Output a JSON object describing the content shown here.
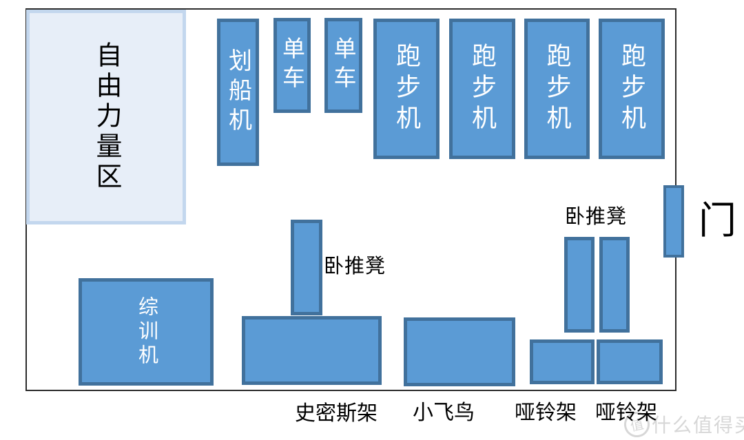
{
  "colors": {
    "machine_fill": "#5b9bd5",
    "machine_border": "#41719c",
    "zone_fill": "#e7eef8",
    "zone_border": "#c3d7ee",
    "wall": "#2b2b2b",
    "machine_text": "#ffffff",
    "label_text": "#000000",
    "watermark": "#d7d7d7"
  },
  "zone": {
    "label": "自由力量区"
  },
  "machines": {
    "rowing": {
      "label": "划船机"
    },
    "bike_1": {
      "label": "单车"
    },
    "bike_2": {
      "label": "单车"
    },
    "treadmill_1": {
      "label": "跑步机"
    },
    "treadmill_2": {
      "label": "跑步机"
    },
    "treadmill_3": {
      "label": "跑步机"
    },
    "treadmill_4": {
      "label": "跑步机"
    },
    "trainer": {
      "label": "综训机"
    }
  },
  "floor_labels": {
    "bench_mid": "卧推凳",
    "bench_right": "卧推凳",
    "smith_rack": "史密斯架",
    "cable_fly": "小飞鸟",
    "dumbbell_rack_1": "哑铃架",
    "dumbbell_rack_2": "哑铃架",
    "door": "门"
  },
  "watermark": {
    "logo_char": "值",
    "text": "什么值得买"
  }
}
